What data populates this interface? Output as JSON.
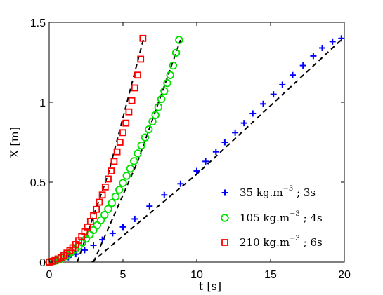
{
  "chart_data": {
    "type": "scatter",
    "xlabel": "t [s]",
    "ylabel": "X [m]",
    "xlim": [
      0,
      20
    ],
    "ylim": [
      0,
      1.5
    ],
    "xticks": [
      "0",
      "5",
      "10",
      "15",
      "20"
    ],
    "yticks": [
      "0",
      "0.5",
      "1",
      "1.5"
    ],
    "grid": false,
    "legend_position": "bottom-right",
    "series": [
      {
        "name": "35 kg.m-3 ; 3s",
        "legend": {
          "pre": "35  kg.m",
          "sup": "−3",
          "post": " ; 3s"
        },
        "marker": "plus",
        "color": "#0000ff",
        "x": [
          0.3,
          0.8,
          1.3,
          1.8,
          2.4,
          3.0,
          3.6,
          4.3,
          5.0,
          5.8,
          6.8,
          7.8,
          8.9,
          10.0,
          10.6,
          11.3,
          11.9,
          12.6,
          13.2,
          13.8,
          14.5,
          15.2,
          15.8,
          16.5,
          17.2,
          17.9,
          18.5,
          19.2,
          19.8
        ],
        "y": [
          0.005,
          0.015,
          0.03,
          0.05,
          0.075,
          0.105,
          0.14,
          0.18,
          0.22,
          0.27,
          0.35,
          0.42,
          0.49,
          0.57,
          0.63,
          0.69,
          0.75,
          0.81,
          0.87,
          0.93,
          0.99,
          1.05,
          1.11,
          1.17,
          1.23,
          1.29,
          1.34,
          1.38,
          1.4
        ]
      },
      {
        "name": "105 kg.m-3 ; 4s",
        "legend": {
          "pre": "105 kg.m",
          "sup": "−3",
          "post": " ; 4s"
        },
        "marker": "circle",
        "color": "#00e000",
        "x": [
          0.0,
          0.25,
          0.5,
          0.75,
          1.0,
          1.25,
          1.5,
          1.75,
          2.0,
          2.25,
          2.5,
          2.75,
          3.0,
          3.25,
          3.5,
          3.75,
          4.0,
          4.25,
          4.5,
          4.75,
          5.0,
          5.25,
          5.5,
          5.75,
          6.0,
          6.25,
          6.5,
          6.75,
          7.0,
          7.2,
          7.4,
          7.6,
          7.8,
          8.0,
          8.2,
          8.4,
          8.6,
          8.8
        ],
        "y": [
          0.0,
          0.005,
          0.01,
          0.02,
          0.032,
          0.046,
          0.062,
          0.08,
          0.1,
          0.122,
          0.146,
          0.172,
          0.2,
          0.23,
          0.262,
          0.296,
          0.332,
          0.37,
          0.41,
          0.452,
          0.495,
          0.54,
          0.585,
          0.632,
          0.68,
          0.73,
          0.78,
          0.83,
          0.88,
          0.92,
          0.97,
          1.02,
          1.07,
          1.12,
          1.17,
          1.23,
          1.31,
          1.39
        ]
      },
      {
        "name": "210 kg.m-3 ; 6s",
        "legend": {
          "pre": "210 kg.m",
          "sup": "−3",
          "post": " ; 6s"
        },
        "marker": "square",
        "color": "#ff0000",
        "x": [
          0.0,
          0.2,
          0.4,
          0.6,
          0.8,
          1.0,
          1.2,
          1.4,
          1.6,
          1.8,
          2.0,
          2.2,
          2.4,
          2.6,
          2.8,
          3.0,
          3.2,
          3.4,
          3.6,
          3.8,
          4.0,
          4.2,
          4.4,
          4.6,
          4.8,
          5.0,
          5.2,
          5.4,
          5.6,
          5.8,
          6.0,
          6.2,
          6.35
        ],
        "y": [
          0.0,
          0.005,
          0.01,
          0.02,
          0.03,
          0.042,
          0.056,
          0.072,
          0.09,
          0.11,
          0.135,
          0.16,
          0.19,
          0.22,
          0.255,
          0.29,
          0.33,
          0.375,
          0.42,
          0.47,
          0.52,
          0.57,
          0.63,
          0.69,
          0.75,
          0.81,
          0.87,
          0.94,
          1.01,
          1.09,
          1.17,
          1.27,
          1.4
        ]
      }
    ],
    "fit_lines": [
      {
        "style": "dashed",
        "color": "#000000",
        "points": [
          [
            2.9,
            0.0
          ],
          [
            7.0,
            0.32
          ],
          [
            10.0,
            0.55
          ],
          [
            19.9,
            1.4
          ]
        ]
      },
      {
        "style": "dashed",
        "color": "#000000",
        "points": [
          [
            3.0,
            0.0
          ],
          [
            6.0,
            0.63
          ],
          [
            8.9,
            1.39
          ]
        ]
      },
      {
        "style": "dashed",
        "color": "#000000",
        "points": [
          [
            1.9,
            0.0
          ],
          [
            4.0,
            0.55
          ],
          [
            6.4,
            1.4
          ]
        ]
      }
    ]
  }
}
